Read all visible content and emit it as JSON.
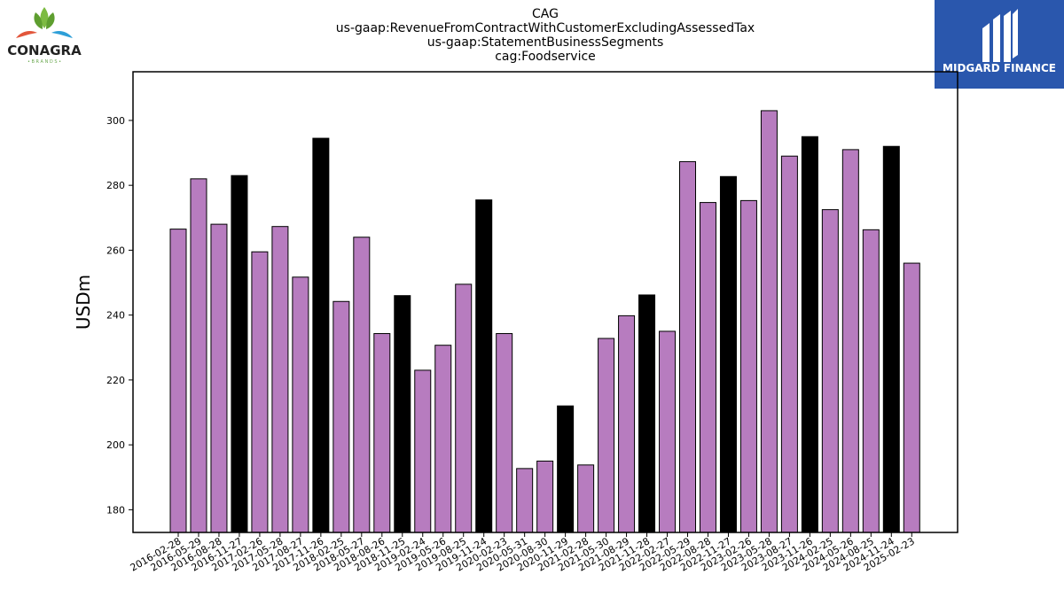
{
  "logos": {
    "left": {
      "wordmark": "CONAGRA",
      "subtext": "• B R A N D S •"
    },
    "right": {
      "wordmark": "MIDGARD FINANCE",
      "background": "#2a57ad"
    }
  },
  "colors": {
    "bar_default": "#b77cbf",
    "bar_q4": "#000000",
    "edge": "#000000"
  },
  "chart_data": {
    "type": "bar",
    "title": [
      "CAG",
      "us-gaap:RevenueFromContractWithCustomerExcludingAssessedTax",
      "us-gaap:StatementBusinessSegments",
      "cag:Foodservice"
    ],
    "xlabel": "",
    "ylabel": "USDm",
    "ylim": [
      173,
      315
    ],
    "yticks": [
      180,
      200,
      220,
      240,
      260,
      280,
      300
    ],
    "grid": false,
    "categories": [
      "2016-02-28",
      "2016-05-29",
      "2016-08-28",
      "2016-11-27",
      "2017-02-26",
      "2017-05-28",
      "2017-08-27",
      "2017-11-26",
      "2018-02-25",
      "2018-05-27",
      "2018-08-26",
      "2018-11-25",
      "2019-02-24",
      "2019-05-26",
      "2019-08-25",
      "2019-11-24",
      "2020-02-23",
      "2020-05-31",
      "2020-08-30",
      "2020-11-29",
      "2021-02-28",
      "2021-05-30",
      "2021-08-29",
      "2021-11-28",
      "2022-02-27",
      "2022-05-29",
      "2022-08-28",
      "2022-11-27",
      "2023-02-26",
      "2023-05-28",
      "2023-08-27",
      "2023-11-26",
      "2024-02-25",
      "2024-05-26",
      "2024-08-25",
      "2024-11-24",
      "2025-02-23"
    ],
    "values": [
      266.5,
      282,
      268,
      283,
      259.5,
      267.3,
      251.7,
      294.5,
      244.2,
      264,
      234.3,
      246,
      223,
      230.7,
      249.5,
      275.5,
      234.3,
      192.7,
      195,
      212,
      193.8,
      232.8,
      239.8,
      246.2,
      235,
      287.3,
      274.7,
      282.7,
      275.3,
      303,
      289,
      295,
      272.5,
      291,
      266.3,
      292,
      256
    ],
    "highlight": [
      false,
      false,
      false,
      true,
      false,
      false,
      false,
      true,
      false,
      false,
      false,
      true,
      false,
      false,
      false,
      true,
      false,
      false,
      false,
      true,
      false,
      false,
      false,
      true,
      false,
      false,
      false,
      true,
      false,
      false,
      false,
      true,
      false,
      false,
      false,
      true,
      false
    ]
  }
}
